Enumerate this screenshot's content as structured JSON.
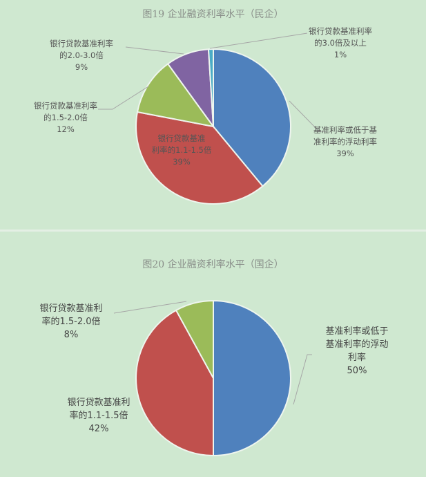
{
  "chart_data": [
    {
      "type": "pie",
      "title": "图19 企业融资利率水平（民企）",
      "slices": [
        {
          "label_lines": [
            "基准利率或低于基",
            "准利率的浮动利率"
          ],
          "value": 39,
          "value_label": "39%",
          "color": "#4f81bd"
        },
        {
          "label_lines": [
            "银行贷款基准",
            "利率的1.1-1.5倍"
          ],
          "value": 39,
          "value_label": "39%",
          "color": "#c0504d"
        },
        {
          "label_lines": [
            "银行贷款基准利率",
            "的1.5-2.0倍"
          ],
          "value": 12,
          "value_label": "12%",
          "color": "#9bbb59"
        },
        {
          "label_lines": [
            "银行贷款基准利率",
            "的2.0-3.0倍"
          ],
          "value": 9,
          "value_label": "9%",
          "color": "#8064a2"
        },
        {
          "label_lines": [
            "银行贷款基准利率",
            "的3.0倍及以上"
          ],
          "value": 1,
          "value_label": "1%",
          "color": "#4bacc6"
        }
      ]
    },
    {
      "type": "pie",
      "title": "图20 企业融资利率水平（国企）",
      "slices": [
        {
          "label_lines": [
            "基准利率或低于",
            "基准利率的浮动",
            "利率"
          ],
          "value": 50,
          "value_label": "50%",
          "color": "#4f81bd"
        },
        {
          "label_lines": [
            "银行贷款基准利",
            "率的1.1-1.5倍"
          ],
          "value": 42,
          "value_label": "42%",
          "color": "#c0504d"
        },
        {
          "label_lines": [
            "银行贷款基准利",
            "率的1.5-2.0倍"
          ],
          "value": 8,
          "value_label": "8%",
          "color": "#9bbb59"
        }
      ]
    }
  ]
}
